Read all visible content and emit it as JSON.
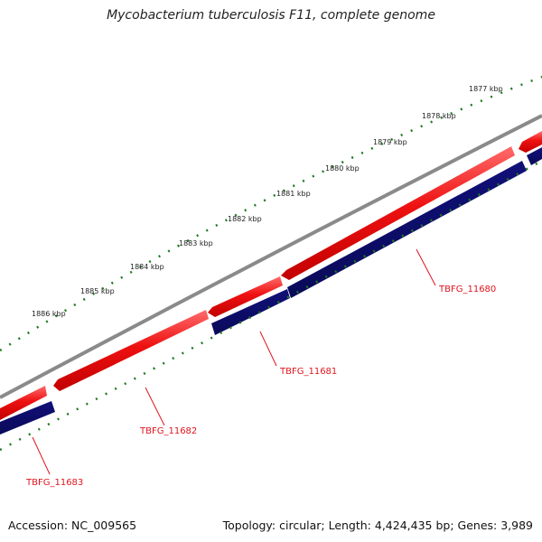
{
  "title": "Mycobacterium tuberculosis F11, complete genome",
  "footer": {
    "accession": "Accession: NC_009565",
    "summary": "Topology: circular; Length: 4,424,435 bp; Genes: 3,989"
  },
  "colors": {
    "backbone": "#8a8a8a",
    "forward_strand": "#ee1111",
    "reverse_strand": "#101078",
    "ticks": "#1f7a1f",
    "gene_label": "#e0141e"
  },
  "kbp_ticks": [
    "1877 kbp",
    "1878 kbp",
    "1879 kbp",
    "1880 kbp",
    "1881 kbp",
    "1882 kbp",
    "1883 kbp",
    "1884 kbp",
    "1885 kbp",
    "1886 kbp"
  ],
  "gene_labels": [
    "TBFG_11680",
    "TBFG_11681",
    "TBFG_11682",
    "TBFG_11683"
  ]
}
